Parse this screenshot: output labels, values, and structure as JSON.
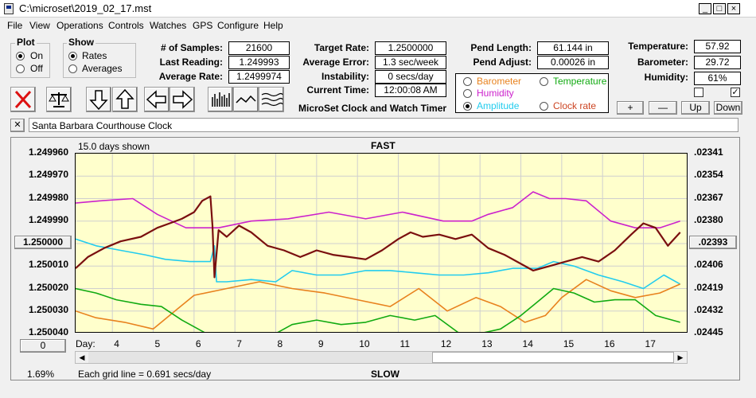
{
  "window": {
    "title": "C:\\microset\\2019_02_17.mst",
    "controls": [
      "_",
      "□",
      "×"
    ]
  },
  "menu": [
    "File",
    "View",
    "Operations",
    "Controls",
    "Watches",
    "GPS",
    "Configure",
    "Help"
  ],
  "plot_group": {
    "title": "Plot",
    "on_label": "On",
    "off_label": "Off",
    "selected": "On"
  },
  "show_group": {
    "title": "Show",
    "rates_label": "Rates",
    "averages_label": "Averages",
    "selected": "Rates"
  },
  "stats1": {
    "samples_label": "# of Samples:",
    "samples_value": "21600",
    "last_label": "Last Reading:",
    "last_value": "1.249993",
    "avg_label": "Average Rate:",
    "avg_value": "1.2499974"
  },
  "stats2": {
    "target_label": "Target Rate:",
    "target_value": "1.2500000",
    "error_label": "Average Error:",
    "error_value": "1.3 sec/week",
    "instab_label": "Instability:",
    "instab_value": "0 secs/day",
    "time_label": "Current Time:",
    "time_value": "12:00:08 AM"
  },
  "pend": {
    "length_label": "Pend Length:",
    "length_value": "61.144 in",
    "adjust_label": "Pend Adjust:",
    "adjust_value": "0.00026 in"
  },
  "env": {
    "temp_label": "Temperature:",
    "temp_value": "57.92",
    "baro_label": "Barometer:",
    "baro_value": "29.72",
    "hum_label": "Humidity:",
    "hum_value": "61%",
    "check1": false,
    "check2": true
  },
  "series_select": {
    "barometer": "Barometer",
    "temperature": "Temperature",
    "humidity": "Humidity",
    "amplitude": "Amplitude",
    "clock_rate": "Clock rate",
    "selected": "Amplitude",
    "colors": {
      "barometer": "#e8821e",
      "temperature": "#11aa11",
      "humidity": "#cc22cc",
      "amplitude": "#22ccee",
      "clock_rate": "#cc4422"
    }
  },
  "adjust_buttons": {
    "plus": "+",
    "minus": "—",
    "up": "Up",
    "down": "Down"
  },
  "app_caption": "MicroSet Clock and Watch Timer",
  "clock_name": "Santa Barbara Courthouse Clock",
  "plot": {
    "days_shown": "15.0 days shown",
    "fast_label": "FAST",
    "slow_label": "SLOW",
    "grid_note": "Each grid line = 0.691 secs/day",
    "percent": "1.69%",
    "center_value": "1.250000",
    "right_center_value": ".02393",
    "scroll_pos_value": "0",
    "day_label": "Day:"
  },
  "chart_data": {
    "type": "line",
    "y_left_ticks": [
      "1.249960",
      "1.249970",
      "1.249980",
      "1.249990",
      "1.250000",
      "1.250010",
      "1.250020",
      "1.250030",
      "1.250040"
    ],
    "y_right_ticks": [
      ".02341",
      ".02354",
      ".02367",
      ".02380",
      ".02393",
      ".02406",
      ".02419",
      ".02432",
      ".02445"
    ],
    "x_ticks": [
      "4",
      "5",
      "6",
      "7",
      "8",
      "9",
      "10",
      "11",
      "12",
      "13",
      "14",
      "15",
      "16",
      "17"
    ],
    "xlim": [
      3.1,
      18.1
    ],
    "ylim": [
      1.24996,
      1.25004
    ],
    "y_reversed": true,
    "grid": true,
    "series": [
      {
        "key": "humidity",
        "color": "#cc22cc",
        "x": [
          3.1,
          3.7,
          4.5,
          5.1,
          5.8,
          6.3,
          6.6,
          7.4,
          8.3,
          9.3,
          10.2,
          11.1,
          12.1,
          12.8,
          13.2,
          13.8,
          14.3,
          14.7,
          15.1,
          15.6,
          16.2,
          16.8,
          17.4,
          17.9
        ],
        "y": [
          1.249982,
          1.249981,
          1.24998,
          1.249987,
          1.249993,
          1.249993,
          1.249993,
          1.24999,
          1.249989,
          1.249986,
          1.249989,
          1.249986,
          1.24999,
          1.24999,
          1.249987,
          1.249984,
          1.249977,
          1.24998,
          1.24998,
          1.249981,
          1.24999,
          1.249993,
          1.249993,
          1.24999
        ]
      },
      {
        "key": "amplitude",
        "color": "#22ccee",
        "x": [
          3.1,
          3.6,
          4.2,
          4.8,
          5.3,
          5.9,
          6.4,
          6.5,
          6.55,
          6.8,
          7.4,
          8.0,
          8.4,
          9.0,
          9.6,
          10.2,
          10.8,
          11.4,
          12.0,
          12.6,
          13.2,
          13.8,
          14.4,
          14.8,
          15.3,
          15.9,
          16.5,
          17.0,
          17.5,
          17.9
        ],
        "y": [
          1.249998,
          1.250001,
          1.250003,
          1.250005,
          1.250007,
          1.250008,
          1.250008,
          1.250001,
          1.250017,
          1.250017,
          1.250016,
          1.250017,
          1.250012,
          1.250014,
          1.250014,
          1.250012,
          1.250012,
          1.250013,
          1.250014,
          1.250014,
          1.250013,
          1.250011,
          1.250011,
          1.250008,
          1.25001,
          1.250014,
          1.250017,
          1.25002,
          1.250014,
          1.250018
        ]
      },
      {
        "key": "barometer",
        "color": "#e8821e",
        "x": [
          3.1,
          3.6,
          4.3,
          5.0,
          5.6,
          6.0,
          6.8,
          7.6,
          8.4,
          9.2,
          10.0,
          10.8,
          11.5,
          12.2,
          12.9,
          13.5,
          14.1,
          14.6,
          15.0,
          15.6,
          16.2,
          16.8,
          17.4,
          17.9
        ],
        "y": [
          1.25003,
          1.250033,
          1.250035,
          1.250038,
          1.250029,
          1.250023,
          1.25002,
          1.250017,
          1.25002,
          1.250022,
          1.250025,
          1.250028,
          1.25002,
          1.25003,
          1.250024,
          1.250028,
          1.250035,
          1.250032,
          1.250024,
          1.250016,
          1.250021,
          1.250024,
          1.250022,
          1.250018
        ]
      },
      {
        "key": "temperature",
        "color": "#11aa11",
        "x": [
          3.1,
          3.6,
          4.1,
          4.7,
          5.2,
          5.7,
          6.1,
          6.3,
          7.2,
          8.0,
          8.4,
          9.0,
          9.6,
          10.2,
          10.8,
          11.4,
          11.9,
          12.5,
          13.0,
          13.5,
          14.0,
          14.4,
          14.8,
          15.3,
          15.8,
          16.3,
          16.8,
          17.3,
          17.9
        ],
        "y": [
          1.25002,
          1.250022,
          1.250025,
          1.250027,
          1.250028,
          1.250034,
          1.250038,
          1.25004,
          1.25004,
          1.25004,
          1.250036,
          1.250034,
          1.250036,
          1.250035,
          1.250032,
          1.250034,
          1.250032,
          1.25004,
          1.25004,
          1.250038,
          1.250032,
          1.250026,
          1.25002,
          1.250022,
          1.250026,
          1.250025,
          1.250025,
          1.250032,
          1.250035
        ]
      },
      {
        "key": "clock_rate",
        "color": "#7a0f0f",
        "x": [
          3.1,
          3.4,
          3.8,
          4.2,
          4.7,
          5.1,
          5.4,
          5.7,
          6.0,
          6.2,
          6.4,
          6.45,
          6.5,
          6.6,
          6.8,
          7.1,
          7.4,
          7.8,
          8.2,
          8.6,
          9.0,
          9.4,
          9.8,
          10.2,
          10.6,
          11.0,
          11.3,
          11.6,
          12.0,
          12.4,
          12.8,
          13.2,
          13.6,
          14.0,
          14.3,
          14.7,
          15.1,
          15.5,
          15.9,
          16.3,
          16.7,
          17.0,
          17.3,
          17.6,
          17.9
        ],
        "y": [
          1.250011,
          1.250006,
          1.250002,
          1.249999,
          1.249997,
          1.249993,
          1.249991,
          1.249989,
          1.249986,
          1.249981,
          1.249979,
          1.249992,
          1.250015,
          1.249994,
          1.249997,
          1.249992,
          1.249995,
          1.250001,
          1.250003,
          1.250006,
          1.250003,
          1.250005,
          1.250006,
          1.250007,
          1.250003,
          1.249998,
          1.249995,
          1.249997,
          1.249996,
          1.249998,
          1.249996,
          1.250002,
          1.250005,
          1.250009,
          1.250012,
          1.25001,
          1.250008,
          1.250006,
          1.250008,
          1.250003,
          1.249996,
          1.249991,
          1.249993,
          1.250001,
          1.249995
        ]
      }
    ]
  }
}
